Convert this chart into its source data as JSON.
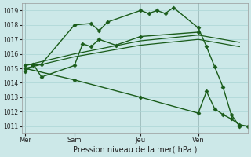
{
  "bg_color": "#cce8e8",
  "grid_color": "#aad4d4",
  "line_color": "#1a5c1a",
  "xlabel": "Pression niveau de la mer( hPa )",
  "ylim": [
    1010.5,
    1019.5
  ],
  "yticks": [
    1011,
    1012,
    1013,
    1014,
    1015,
    1016,
    1017,
    1018,
    1019
  ],
  "day_labels": [
    "Mer",
    "Sam",
    "Jeu",
    "Ven"
  ],
  "day_positions": [
    0.0,
    3.0,
    7.0,
    10.5
  ],
  "xlim": [
    -0.2,
    13.5
  ],
  "series": [
    {
      "x": [
        0.0,
        0.5,
        1.0,
        3.0,
        4.0,
        4.5,
        5.0,
        7.0,
        7.5,
        8.0,
        8.5,
        9.0,
        10.5,
        11.0,
        11.5,
        12.0,
        12.5,
        13.0
      ],
      "y": [
        1014.8,
        1015.2,
        1015.3,
        1018.0,
        1018.1,
        1017.6,
        1018.2,
        1019.0,
        1018.8,
        1019.0,
        1018.8,
        1019.2,
        1017.8,
        1016.5,
        1015.1,
        1013.7,
        1011.8,
        1011.0
      ],
      "marker": "D",
      "markersize": 2.5,
      "linewidth": 1.0
    },
    {
      "x": [
        0.0,
        0.5,
        1.0,
        3.0,
        3.5,
        4.0,
        4.5,
        5.5,
        7.0,
        10.5
      ],
      "y": [
        1015.2,
        1015.3,
        1014.4,
        1015.2,
        1016.7,
        1016.5,
        1017.0,
        1016.6,
        1017.2,
        1017.5
      ],
      "marker": "D",
      "markersize": 2.5,
      "linewidth": 1.0
    },
    {
      "x": [
        0.0,
        3.0,
        7.0,
        10.5,
        13.0
      ],
      "y": [
        1015.0,
        1015.8,
        1016.6,
        1017.0,
        1016.5
      ],
      "marker": null,
      "markersize": 0,
      "linewidth": 0.9
    },
    {
      "x": [
        0.0,
        3.0,
        7.0,
        10.5,
        13.0
      ],
      "y": [
        1015.2,
        1016.0,
        1016.9,
        1017.3,
        1016.8
      ],
      "marker": null,
      "markersize": 0,
      "linewidth": 0.9
    },
    {
      "x": [
        0.0,
        3.0,
        7.0,
        10.5,
        11.0,
        11.5,
        12.0,
        12.5,
        13.0,
        13.5
      ],
      "y": [
        1015.0,
        1014.2,
        1013.0,
        1011.9,
        1013.4,
        1012.2,
        1011.8,
        1011.5,
        1011.1,
        1011.0
      ],
      "marker": "D",
      "markersize": 2.5,
      "linewidth": 1.0
    }
  ]
}
